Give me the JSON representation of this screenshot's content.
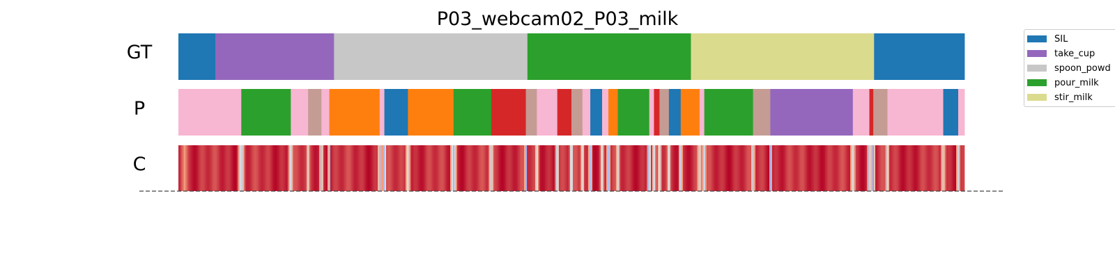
{
  "chart_data": {
    "type": "segmentation",
    "title": "P03_webcam02_P03_milk",
    "x_range": [
      0,
      1000
    ],
    "rows": [
      {
        "label": "GT",
        "segments": [
          {
            "start": 0,
            "end": 47,
            "action": "SIL"
          },
          {
            "start": 47,
            "end": 198,
            "action": "take_cup"
          },
          {
            "start": 198,
            "end": 444,
            "action": "spoon_powder"
          },
          {
            "start": 444,
            "end": 652,
            "action": "pour_milk"
          },
          {
            "start": 652,
            "end": 885,
            "action": "stir_milk"
          },
          {
            "start": 885,
            "end": 1000,
            "action": "SIL"
          }
        ]
      },
      {
        "label": "P",
        "segments": [
          {
            "start": 0,
            "end": 80,
            "color": "#f7b6d2"
          },
          {
            "start": 80,
            "end": 143,
            "color": "#2ca02c"
          },
          {
            "start": 143,
            "end": 165,
            "color": "#f7b6d2"
          },
          {
            "start": 165,
            "end": 182,
            "color": "#c49c94"
          },
          {
            "start": 182,
            "end": 192,
            "color": "#f7b6d2"
          },
          {
            "start": 192,
            "end": 256,
            "color": "#ff7f0e"
          },
          {
            "start": 256,
            "end": 262,
            "color": "#f7b6d2"
          },
          {
            "start": 262,
            "end": 292,
            "color": "#1f77b4"
          },
          {
            "start": 292,
            "end": 350,
            "color": "#ff7f0e"
          },
          {
            "start": 350,
            "end": 398,
            "color": "#2ca02c"
          },
          {
            "start": 398,
            "end": 442,
            "color": "#d62728"
          },
          {
            "start": 442,
            "end": 456,
            "color": "#c49c94"
          },
          {
            "start": 456,
            "end": 482,
            "color": "#f7b6d2"
          },
          {
            "start": 482,
            "end": 500,
            "color": "#d62728"
          },
          {
            "start": 500,
            "end": 514,
            "color": "#c49c94"
          },
          {
            "start": 514,
            "end": 524,
            "color": "#f7b6d2"
          },
          {
            "start": 524,
            "end": 539,
            "color": "#1f77b4"
          },
          {
            "start": 539,
            "end": 547,
            "color": "#f7b6d2"
          },
          {
            "start": 547,
            "end": 559,
            "color": "#ff7f0e"
          },
          {
            "start": 559,
            "end": 599,
            "color": "#2ca02c"
          },
          {
            "start": 599,
            "end": 605,
            "color": "#f7b6d2"
          },
          {
            "start": 605,
            "end": 612,
            "color": "#d62728"
          },
          {
            "start": 612,
            "end": 624,
            "color": "#c49c94"
          },
          {
            "start": 624,
            "end": 639,
            "color": "#1f77b4"
          },
          {
            "start": 639,
            "end": 663,
            "color": "#ff7f0e"
          },
          {
            "start": 663,
            "end": 669,
            "color": "#f7b6d2"
          },
          {
            "start": 669,
            "end": 731,
            "color": "#2ca02c"
          },
          {
            "start": 731,
            "end": 753,
            "color": "#c49c94"
          },
          {
            "start": 753,
            "end": 858,
            "color": "#9467bd"
          },
          {
            "start": 858,
            "end": 879,
            "color": "#f7b6d2"
          },
          {
            "start": 879,
            "end": 884,
            "color": "#d62728"
          },
          {
            "start": 884,
            "end": 902,
            "color": "#c49c94"
          },
          {
            "start": 902,
            "end": 973,
            "color": "#f7b6d2"
          },
          {
            "start": 973,
            "end": 992,
            "color": "#1f77b4"
          },
          {
            "start": 992,
            "end": 1000,
            "color": "#f7b6d2"
          }
        ]
      },
      {
        "label": "C",
        "colormap": "coolwarm",
        "value_range": [
          0,
          1
        ],
        "base_value": 0.93,
        "dips": [
          {
            "pos": 8,
            "value": 0.75,
            "width": 6
          },
          {
            "pos": 80,
            "value": 0.35,
            "width": 5
          },
          {
            "pos": 143,
            "value": 0.45,
            "width": 4
          },
          {
            "pos": 165,
            "value": 0.5,
            "width": 3
          },
          {
            "pos": 182,
            "value": 0.3,
            "width": 3
          },
          {
            "pos": 192,
            "value": 0.15,
            "width": 2
          },
          {
            "pos": 256,
            "value": 0.3,
            "width": 3
          },
          {
            "pos": 262,
            "value": 0.2,
            "width": 3
          },
          {
            "pos": 292,
            "value": 0.45,
            "width": 4
          },
          {
            "pos": 350,
            "value": 0.3,
            "width": 5
          },
          {
            "pos": 398,
            "value": 0.4,
            "width": 4
          },
          {
            "pos": 398.5,
            "value": 0.12,
            "width": 1
          },
          {
            "pos": 442,
            "value": 0.15,
            "width": 2
          },
          {
            "pos": 456,
            "value": 0.4,
            "width": 3
          },
          {
            "pos": 482,
            "value": 0.35,
            "width": 3
          },
          {
            "pos": 500,
            "value": 0.3,
            "width": 3
          },
          {
            "pos": 514,
            "value": 0.4,
            "width": 3
          },
          {
            "pos": 524,
            "value": 0.35,
            "width": 3
          },
          {
            "pos": 539,
            "value": 0.4,
            "width": 3
          },
          {
            "pos": 547,
            "value": 0.35,
            "width": 3
          },
          {
            "pos": 559,
            "value": 0.45,
            "width": 3
          },
          {
            "pos": 599,
            "value": 0.25,
            "width": 3
          },
          {
            "pos": 605,
            "value": 0.4,
            "width": 3
          },
          {
            "pos": 612,
            "value": 0.4,
            "width": 3
          },
          {
            "pos": 624,
            "value": 0.4,
            "width": 3
          },
          {
            "pos": 639,
            "value": 0.4,
            "width": 3
          },
          {
            "pos": 663,
            "value": 0.5,
            "width": 4
          },
          {
            "pos": 669,
            "value": 0.4,
            "width": 3
          },
          {
            "pos": 731,
            "value": 0.3,
            "width": 3
          },
          {
            "pos": 753,
            "value": 0.15,
            "width": 2
          },
          {
            "pos": 858,
            "value": 0.45,
            "width": 4
          },
          {
            "pos": 879,
            "value": 0.3,
            "width": 3
          },
          {
            "pos": 884,
            "value": 0.2,
            "width": 3
          },
          {
            "pos": 902,
            "value": 0.4,
            "width": 3
          },
          {
            "pos": 973,
            "value": 0.55,
            "width": 4
          },
          {
            "pos": 992,
            "value": 0.45,
            "width": 3
          }
        ]
      }
    ],
    "legend": {
      "placement": "upper-right",
      "entries": [
        {
          "label": "SIL",
          "color": "#1f77b4"
        },
        {
          "label": "take_cup",
          "color": "#9467bd"
        },
        {
          "label": "spoon_powd",
          "color": "#c7c7c7"
        },
        {
          "label": "pour_milk",
          "color": "#2ca02c"
        },
        {
          "label": "stir_milk",
          "color": "#dbdb8d"
        }
      ]
    },
    "action_colors": {
      "SIL": "#1f77b4",
      "take_cup": "#9467bd",
      "spoon_powder": "#c7c7c7",
      "pour_milk": "#2ca02c",
      "stir_milk": "#dbdb8d"
    },
    "baseline_style": "dashed"
  }
}
